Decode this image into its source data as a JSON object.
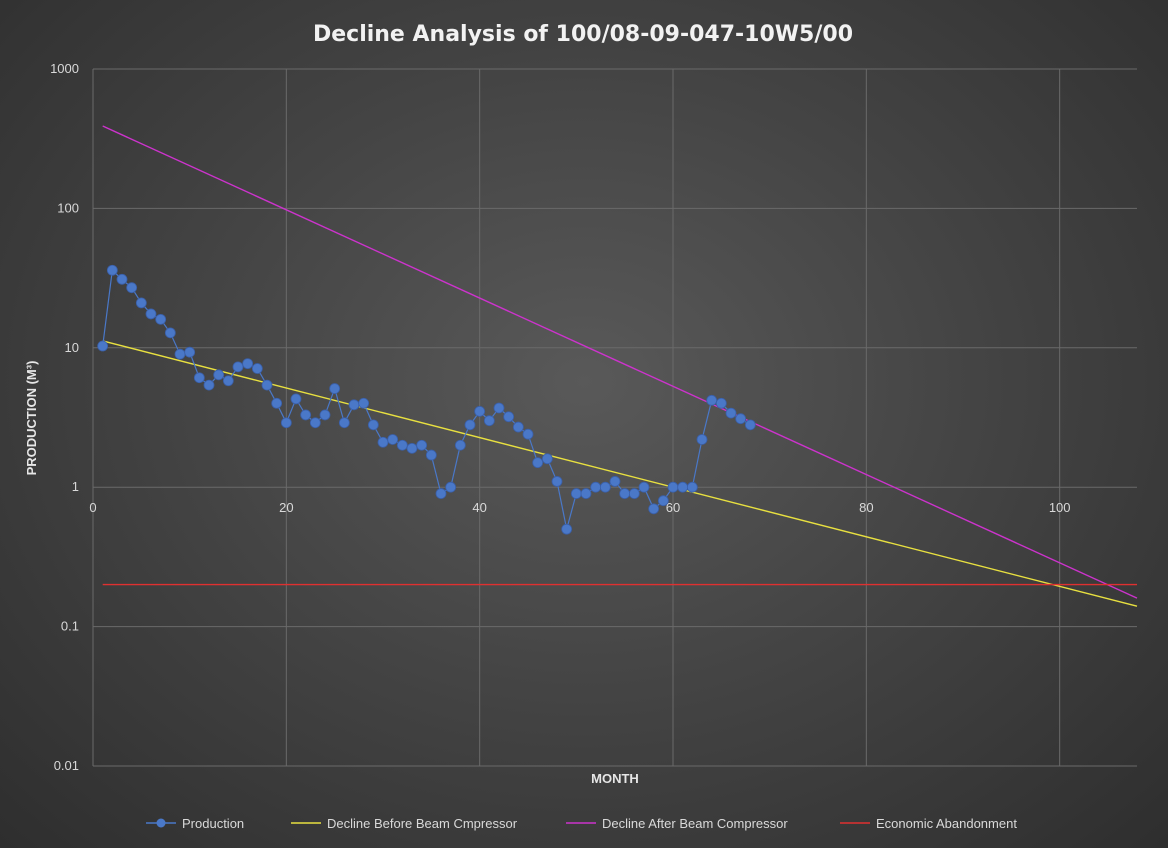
{
  "chart_data": {
    "type": "scatter",
    "title": "Decline Analysis of 100/08-09-047-10W5/00",
    "xlabel": "MONTH",
    "ylabel": "PRODUCTION (M³)",
    "xlim": [
      0,
      108
    ],
    "ylim": [
      0.01,
      1000
    ],
    "y_scale": "log",
    "grid": true,
    "legend_position": "bottom",
    "x_ticks": [
      "0",
      "20",
      "40",
      "60",
      "80",
      "100"
    ],
    "y_ticks": [
      "1000",
      "100",
      "10",
      "1",
      "0.1",
      "0.01"
    ],
    "series": [
      {
        "name": "Production",
        "kind": "line-markers",
        "color": "#4a78c8",
        "x": [
          1,
          2,
          3,
          4,
          5,
          6,
          7,
          8,
          9,
          10,
          11,
          12,
          13,
          14,
          15,
          16,
          17,
          18,
          19,
          20,
          21,
          22,
          23,
          24,
          25,
          26,
          27,
          28,
          29,
          30,
          31,
          32,
          33,
          34,
          35,
          36,
          37,
          38,
          39,
          40,
          41,
          42,
          43,
          44,
          45,
          46,
          47,
          48,
          49,
          50,
          51,
          52,
          53,
          54,
          55,
          56,
          57,
          58,
          59,
          60,
          61,
          62,
          63,
          64,
          65,
          66,
          67,
          68
        ],
        "y": [
          10.3,
          36,
          31,
          27,
          21,
          17.5,
          16,
          12.8,
          9,
          9.3,
          6.1,
          5.4,
          6.4,
          5.8,
          7.3,
          7.7,
          7.1,
          5.4,
          4,
          2.9,
          4.3,
          3.3,
          2.9,
          3.3,
          5.1,
          2.9,
          3.9,
          4,
          2.8,
          2.1,
          2.2,
          2,
          1.9,
          2,
          1.7,
          0.9,
          1,
          2,
          2.8,
          3.5,
          3,
          3.7,
          3.2,
          2.7,
          2.4,
          1.5,
          1.6,
          1.1,
          0.5,
          0.9,
          0.9,
          1,
          1,
          1.1,
          0.9,
          0.9,
          1,
          0.7,
          0.8,
          1,
          1,
          1,
          2.2,
          4.2,
          4,
          3.4,
          3.1,
          2.8
        ]
      },
      {
        "name": "Decline Before Beam Cmpressor",
        "kind": "line",
        "color": "#e8e040",
        "x": [
          1,
          108
        ],
        "y": [
          11.2,
          0.14
        ]
      },
      {
        "name": "Decline After Beam Compressor",
        "kind": "line",
        "color": "#cc33cc",
        "x": [
          1,
          108
        ],
        "y": [
          390,
          0.16
        ]
      },
      {
        "name": "Economic Abandonment",
        "kind": "line",
        "color": "#e03030",
        "x": [
          1,
          108
        ],
        "y": [
          0.2,
          0.2
        ]
      }
    ]
  }
}
